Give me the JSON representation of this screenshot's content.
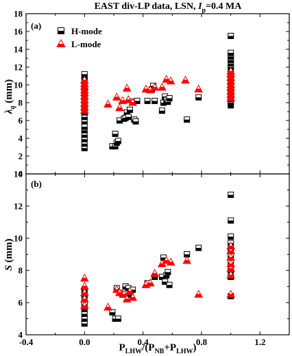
{
  "figure": {
    "title_main": "EAST div-LP data, LSN, ",
    "title_ip": "I",
    "title_ip_sub": "p",
    "title_tail": "=0.4 MA"
  },
  "colors": {
    "hmode": "#000000",
    "lmode": "#ff0000",
    "axis": "#000000",
    "background": "#ffffff"
  },
  "chart_data": [
    {
      "type": "scatter",
      "panel_label": "(a)",
      "ylabel": "λq (mm)",
      "ylabel_main": "λ",
      "ylabel_sub": "q",
      "ylabel_unit": " (mm)",
      "xlim": [
        -0.4,
        1.4
      ],
      "ylim": [
        0,
        18
      ],
      "xticks": [
        -0.4,
        0.0,
        0.4,
        0.8,
        1.2
      ],
      "xtick_labels": [
        "-0.4",
        "0.0",
        "0.4",
        "0.8",
        "1.2"
      ],
      "yticks": [
        0,
        2,
        4,
        6,
        8,
        10,
        12,
        14,
        16,
        18
      ],
      "ytick_labels": [
        "0",
        "2",
        "4",
        "6",
        "8",
        "10",
        "12",
        "14",
        "16",
        "18"
      ],
      "grid": false,
      "legend_position": "top-left",
      "series": [
        {
          "name": "H-mode",
          "marker": "half-filled-square",
          "points": [
            [
              0.0,
              2.9
            ],
            [
              0.0,
              3.4
            ],
            [
              0.0,
              3.9
            ],
            [
              0.0,
              4.4
            ],
            [
              0.0,
              4.9
            ],
            [
              0.0,
              5.3
            ],
            [
              0.0,
              5.9
            ],
            [
              0.0,
              6.4
            ],
            [
              0.0,
              6.9
            ],
            [
              0.0,
              7.4
            ],
            [
              0.0,
              7.8
            ],
            [
              0.0,
              8.3
            ],
            [
              0.0,
              8.7
            ],
            [
              0.0,
              9.2
            ],
            [
              0.0,
              9.6
            ],
            [
              0.0,
              10.1
            ],
            [
              0.0,
              10.5
            ],
            [
              0.0,
              10.9
            ],
            [
              0.0,
              11.2
            ],
            [
              0.19,
              3.1
            ],
            [
              0.21,
              3.1
            ],
            [
              0.22,
              3.5
            ],
            [
              0.21,
              4.5
            ],
            [
              0.23,
              3.7
            ],
            [
              0.24,
              6.0
            ],
            [
              0.27,
              6.2
            ],
            [
              0.28,
              6.3
            ],
            [
              0.29,
              6.9
            ],
            [
              0.3,
              6.4
            ],
            [
              0.31,
              7.2
            ],
            [
              0.34,
              6.1
            ],
            [
              0.35,
              5.9
            ],
            [
              0.33,
              8.1
            ],
            [
              0.36,
              8.2
            ],
            [
              0.43,
              8.2
            ],
            [
              0.46,
              9.5
            ],
            [
              0.47,
              9.9
            ],
            [
              0.48,
              8.2
            ],
            [
              0.53,
              7.1
            ],
            [
              0.54,
              8.0
            ],
            [
              0.55,
              8.7
            ],
            [
              0.56,
              8.3
            ],
            [
              0.57,
              8.1
            ],
            [
              0.58,
              8.5
            ],
            [
              0.7,
              6.1
            ],
            [
              0.78,
              8.6
            ],
            [
              1.0,
              7.7
            ],
            [
              1.0,
              8.0
            ],
            [
              1.0,
              8.4
            ],
            [
              1.0,
              8.8
            ],
            [
              1.0,
              9.2
            ],
            [
              1.0,
              9.6
            ],
            [
              1.0,
              10.0
            ],
            [
              1.0,
              10.4
            ],
            [
              1.0,
              10.8
            ],
            [
              1.0,
              11.2
            ],
            [
              1.0,
              11.6
            ],
            [
              1.0,
              12.0
            ],
            [
              1.0,
              12.4
            ],
            [
              1.0,
              12.8
            ],
            [
              1.0,
              13.2
            ],
            [
              1.0,
              13.6
            ],
            [
              1.0,
              15.5
            ]
          ]
        },
        {
          "name": "L-mode",
          "marker": "half-filled-triangle",
          "points": [
            [
              0.0,
              7.1
            ],
            [
              0.0,
              7.5
            ],
            [
              0.0,
              7.9
            ],
            [
              0.0,
              8.3
            ],
            [
              0.0,
              8.7
            ],
            [
              0.0,
              9.1
            ],
            [
              0.0,
              9.4
            ],
            [
              0.0,
              9.8
            ],
            [
              0.0,
              10.1
            ],
            [
              0.0,
              10.5
            ],
            [
              0.16,
              7.8
            ],
            [
              0.22,
              8.6
            ],
            [
              0.24,
              7.4
            ],
            [
              0.26,
              8.2
            ],
            [
              0.29,
              9.6
            ],
            [
              0.3,
              8.3
            ],
            [
              0.33,
              8.0
            ],
            [
              0.42,
              9.5
            ],
            [
              0.45,
              9.4
            ],
            [
              0.48,
              9.7
            ],
            [
              0.53,
              9.7
            ],
            [
              0.56,
              10.6
            ],
            [
              0.59,
              10.4
            ],
            [
              0.69,
              10.5
            ],
            [
              0.78,
              9.5
            ],
            [
              1.0,
              8.5
            ],
            [
              1.0,
              8.9
            ],
            [
              1.0,
              9.3
            ],
            [
              1.0,
              9.7
            ],
            [
              1.0,
              10.0
            ],
            [
              1.0,
              10.4
            ],
            [
              1.0,
              10.8
            ],
            [
              1.0,
              11.2
            ],
            [
              1.0,
              11.5
            ]
          ]
        }
      ]
    },
    {
      "type": "scatter",
      "panel_label": "(b)",
      "ylabel": "S (mm)",
      "ylabel_main": "S",
      "ylabel_unit": " (mm)",
      "xlabel": "PLHW/(PNB+PLHW)",
      "xlabel_parts": [
        "P",
        "LHW",
        "/(P",
        "NB",
        "+P",
        "LHW",
        ")"
      ],
      "xlim": [
        -0.4,
        1.4
      ],
      "ylim": [
        4,
        14
      ],
      "xticks": [
        -0.4,
        0.0,
        0.4,
        0.8,
        1.2
      ],
      "xtick_labels": [
        "-0.4",
        "0.0",
        "0.4",
        "0.8",
        "1.2"
      ],
      "yticks": [
        4,
        6,
        8,
        10,
        12,
        14
      ],
      "ytick_labels": [
        "4",
        "6",
        "8",
        "10",
        "12",
        "14"
      ],
      "grid": false,
      "series": [
        {
          "name": "H-mode",
          "marker": "half-filled-square",
          "points": [
            [
              0.0,
              4.7
            ],
            [
              0.0,
              5.0
            ],
            [
              0.0,
              5.3
            ],
            [
              0.0,
              5.6
            ],
            [
              0.0,
              5.9
            ],
            [
              0.0,
              6.2
            ],
            [
              0.0,
              6.5
            ],
            [
              0.0,
              6.8
            ],
            [
              0.19,
              5.4
            ],
            [
              0.21,
              5.0
            ],
            [
              0.22,
              6.9
            ],
            [
              0.23,
              5.0
            ],
            [
              0.24,
              6.6
            ],
            [
              0.26,
              6.5
            ],
            [
              0.28,
              7.0
            ],
            [
              0.3,
              6.9
            ],
            [
              0.31,
              6.5
            ],
            [
              0.33,
              6.8
            ],
            [
              0.43,
              7.2
            ],
            [
              0.48,
              7.6
            ],
            [
              0.53,
              7.6
            ],
            [
              0.54,
              8.8
            ],
            [
              0.55,
              7.3
            ],
            [
              0.56,
              7.7
            ],
            [
              0.57,
              7.9
            ],
            [
              0.58,
              7.1
            ],
            [
              0.7,
              9.0
            ],
            [
              0.78,
              9.4
            ],
            [
              1.0,
              6.4
            ],
            [
              1.0,
              7.6
            ],
            [
              1.0,
              8.0
            ],
            [
              1.0,
              8.5
            ],
            [
              1.0,
              8.9
            ],
            [
              1.0,
              9.3
            ],
            [
              1.0,
              9.7
            ],
            [
              1.0,
              10.1
            ],
            [
              1.0,
              11.1
            ],
            [
              1.0,
              12.7
            ]
          ]
        },
        {
          "name": "L-mode",
          "marker": "half-filled-triangle",
          "points": [
            [
              0.0,
              5.8
            ],
            [
              0.0,
              6.2
            ],
            [
              0.0,
              6.6
            ],
            [
              0.0,
              7.0
            ],
            [
              0.0,
              7.5
            ],
            [
              0.16,
              5.7
            ],
            [
              0.22,
              6.8
            ],
            [
              0.24,
              6.6
            ],
            [
              0.27,
              6.5
            ],
            [
              0.29,
              6.2
            ],
            [
              0.31,
              6.7
            ],
            [
              0.33,
              6.3
            ],
            [
              0.42,
              7.1
            ],
            [
              0.45,
              7.2
            ],
            [
              0.48,
              7.8
            ],
            [
              0.53,
              8.4
            ],
            [
              0.56,
              8.6
            ],
            [
              0.59,
              8.5
            ],
            [
              0.7,
              8.6
            ],
            [
              0.78,
              6.5
            ],
            [
              1.0,
              6.5
            ],
            [
              1.0,
              7.7
            ],
            [
              1.0,
              8.1
            ],
            [
              1.0,
              8.4
            ],
            [
              1.0,
              8.8
            ],
            [
              1.0,
              9.2
            ],
            [
              1.0,
              9.5
            ]
          ]
        }
      ]
    }
  ]
}
